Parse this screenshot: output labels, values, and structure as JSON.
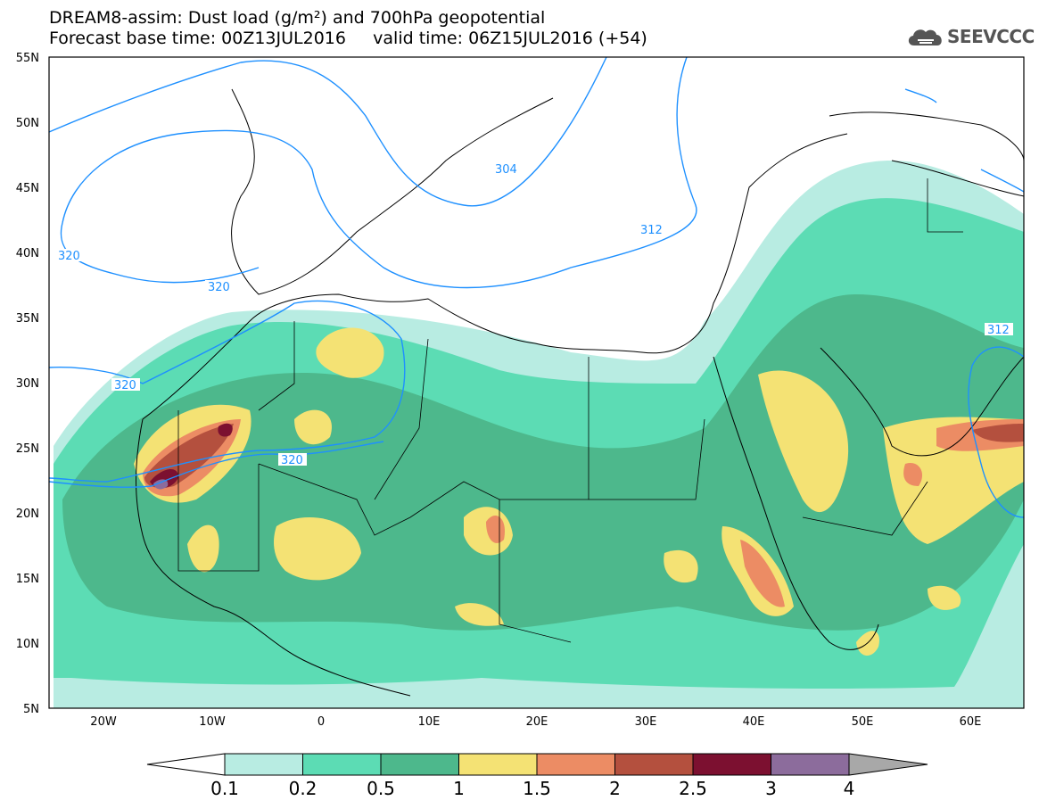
{
  "title": {
    "line1": "DREAM8-assim: Dust load (g/m²) and 700hPa geopotential",
    "line2": "Forecast base time: 00Z13JUL2016     valid time: 06Z15JUL2016 (+54)"
  },
  "logo": {
    "text": "SEEVCCC"
  },
  "map": {
    "lat_labels": [
      "55N",
      "50N",
      "45N",
      "40N",
      "35N",
      "30N",
      "25N",
      "20N",
      "15N",
      "10N",
      "5N"
    ],
    "lon_labels": [
      "20W",
      "10W",
      "0",
      "10E",
      "20E",
      "30E",
      "40E",
      "50E",
      "60E"
    ],
    "contour_labels": [
      "304",
      "312",
      "320",
      "320",
      "320",
      "320",
      "312",
      "312"
    ]
  },
  "colorbar": {
    "labels": [
      "0.1",
      "0.2",
      "0.5",
      "1",
      "1.5",
      "2",
      "2.5",
      "3",
      "4"
    ],
    "colors": [
      "#b8ece2",
      "#5cdcb4",
      "#4db88c",
      "#f4e274",
      "#ec8c64",
      "#b4503e",
      "#7c1030",
      "#8c6c9c",
      "#a8a8a8"
    ]
  }
}
